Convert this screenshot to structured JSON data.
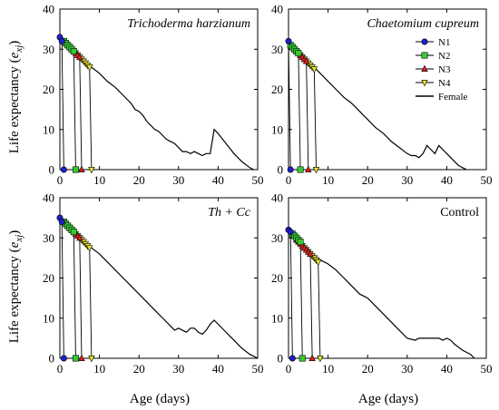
{
  "figure": {
    "ylabel_main": "Life expectancy (",
    "ylabel_var": "e",
    "ylabel_sub": "xj",
    "ylabel_close": ")",
    "xlabel": "Age (days)"
  },
  "chart_data": [
    {
      "type": "line",
      "title": "Trichoderma harzianum",
      "title_style": "italic",
      "xlim": [
        0,
        50
      ],
      "ylim": [
        0,
        40
      ],
      "xticks": [
        0,
        10,
        20,
        30,
        40,
        50
      ],
      "yticks": [
        0,
        10,
        20,
        30,
        40
      ],
      "grid": false,
      "legend": null,
      "series": [
        {
          "name": "N1",
          "marker": "circle",
          "color": "#1f1fcc",
          "x": [
            0,
            0.5,
            1
          ],
          "y": [
            33,
            32,
            0
          ]
        },
        {
          "name": "N2",
          "marker": "square",
          "color": "#33cc33",
          "x": [
            1,
            1.5,
            2,
            2.5,
            3,
            3.5,
            4
          ],
          "y": [
            32,
            31.5,
            31,
            30.5,
            30,
            29.5,
            0
          ]
        },
        {
          "name": "N3",
          "marker": "triangle-up",
          "color": "#e02020",
          "x": [
            2,
            2.5,
            3,
            3.5,
            4,
            4.5,
            5,
            5.5
          ],
          "y": [
            31,
            30.5,
            30,
            29.5,
            29,
            28.5,
            28,
            0
          ]
        },
        {
          "name": "N4",
          "marker": "triangle-down",
          "color": "#e6e62e",
          "x": [
            3.5,
            4,
            4.5,
            5,
            5.5,
            6,
            6.5,
            7,
            7.5,
            8
          ],
          "y": [
            29.5,
            29,
            28.5,
            28,
            27.5,
            27,
            26.5,
            26,
            25.5,
            0
          ]
        },
        {
          "name": "Female",
          "marker": "none",
          "color": "#000000",
          "x": [
            3,
            5,
            8,
            10,
            12,
            14,
            16,
            18,
            19,
            20,
            21,
            22,
            24,
            25,
            26,
            27,
            28,
            29,
            30,
            31,
            32,
            33,
            34,
            35,
            36,
            37,
            38,
            39,
            40,
            42,
            44,
            46,
            48,
            49
          ],
          "y": [
            30,
            28,
            25.5,
            24,
            22,
            20.5,
            18.5,
            16.5,
            15,
            14.5,
            13.5,
            12,
            10,
            9.5,
            8.5,
            7.5,
            7,
            6.5,
            5.5,
            4.5,
            4.5,
            4,
            4.5,
            4,
            3.5,
            4,
            4,
            10,
            9,
            6.5,
            4,
            2,
            0.5,
            0
          ]
        }
      ]
    },
    {
      "type": "line",
      "title": "Chaetomium cupreum",
      "title_style": "italic",
      "xlim": [
        0,
        50
      ],
      "ylim": [
        0,
        40
      ],
      "xticks": [
        0,
        10,
        20,
        30,
        40,
        50
      ],
      "yticks": [
        0,
        10,
        20,
        30,
        40
      ],
      "grid": false,
      "legend": "top-right",
      "series": [
        {
          "name": "N1",
          "marker": "circle",
          "color": "#1f1fcc",
          "x": [
            0,
            0.5
          ],
          "y": [
            32,
            0
          ]
        },
        {
          "name": "N2",
          "marker": "square",
          "color": "#33cc33",
          "x": [
            0.5,
            1,
            1.5,
            2,
            2.5,
            3
          ],
          "y": [
            31,
            30.5,
            30,
            29.5,
            29,
            0
          ]
        },
        {
          "name": "N3",
          "marker": "triangle-up",
          "color": "#e02020",
          "x": [
            2,
            2.5,
            3,
            3.5,
            4,
            4.5,
            5
          ],
          "y": [
            29.5,
            29,
            28.5,
            28,
            27.5,
            27,
            0
          ]
        },
        {
          "name": "N4",
          "marker": "triangle-down",
          "color": "#e6e62e",
          "x": [
            3,
            3.5,
            4,
            4.5,
            5,
            5.5,
            6,
            6.5,
            7
          ],
          "y": [
            28.5,
            28,
            27.5,
            27,
            26.5,
            26,
            25.5,
            25,
            0
          ]
        },
        {
          "name": "Female",
          "marker": "none",
          "color": "#000000",
          "x": [
            3,
            6,
            8,
            10,
            12,
            14,
            16,
            18,
            20,
            22,
            24,
            26,
            28,
            30,
            31,
            32,
            33,
            34,
            35,
            36,
            37,
            38,
            39,
            40,
            41,
            42,
            43,
            44,
            45
          ],
          "y": [
            28.5,
            26,
            24,
            22,
            20,
            18,
            16.5,
            14.5,
            12.5,
            10.5,
            9,
            7,
            5.5,
            4,
            3.5,
            3.5,
            3,
            4,
            6,
            5,
            4,
            6,
            5,
            4,
            3,
            2,
            1,
            0.5,
            0
          ]
        }
      ]
    },
    {
      "type": "line",
      "title": "Th + Cc",
      "title_style": "italic",
      "xlim": [
        0,
        50
      ],
      "ylim": [
        0,
        40
      ],
      "xticks": [
        0,
        10,
        20,
        30,
        40,
        50
      ],
      "yticks": [
        0,
        10,
        20,
        30,
        40
      ],
      "grid": false,
      "legend": null,
      "series": [
        {
          "name": "N1",
          "marker": "circle",
          "color": "#1f1fcc",
          "x": [
            0,
            0.5,
            1
          ],
          "y": [
            35,
            34,
            0
          ]
        },
        {
          "name": "N2",
          "marker": "square",
          "color": "#33cc33",
          "x": [
            1,
            1.5,
            2,
            2.5,
            3,
            3.5,
            4
          ],
          "y": [
            34,
            33.5,
            33,
            32.5,
            32,
            31.5,
            0
          ]
        },
        {
          "name": "N3",
          "marker": "triangle-up",
          "color": "#e02020",
          "x": [
            2,
            2.5,
            3,
            3.5,
            4,
            4.5,
            5,
            5.5
          ],
          "y": [
            33,
            32.5,
            32,
            31.5,
            31,
            30.5,
            30,
            0
          ]
        },
        {
          "name": "N4",
          "marker": "triangle-down",
          "color": "#e6e62e",
          "x": [
            3.5,
            4,
            4.5,
            5,
            5.5,
            6,
            6.5,
            7,
            7.5,
            8
          ],
          "y": [
            31.5,
            31,
            30.5,
            30,
            29.5,
            29,
            28.5,
            28,
            27.5,
            0
          ]
        },
        {
          "name": "Female",
          "marker": "none",
          "color": "#000000",
          "x": [
            3,
            5,
            8,
            10,
            12,
            14,
            16,
            18,
            20,
            22,
            24,
            26,
            28,
            29,
            30,
            31,
            32,
            33,
            34,
            35,
            36,
            37,
            38,
            39,
            40,
            42,
            44,
            46,
            48,
            49,
            50
          ],
          "y": [
            32,
            30,
            27.5,
            26,
            24,
            22,
            20,
            18,
            16,
            14,
            12,
            10,
            8,
            7,
            7.5,
            7,
            6.5,
            7.5,
            7.5,
            6.5,
            6,
            7,
            8.5,
            9.5,
            8.5,
            6.5,
            4.5,
            2.5,
            1,
            0.5,
            0
          ]
        }
      ]
    },
    {
      "type": "line",
      "title": "Control",
      "title_style": "normal",
      "xlim": [
        0,
        50
      ],
      "ylim": [
        0,
        40
      ],
      "xticks": [
        0,
        10,
        20,
        30,
        40,
        50
      ],
      "yticks": [
        0,
        10,
        20,
        30,
        40
      ],
      "grid": false,
      "legend": null,
      "series": [
        {
          "name": "N1",
          "marker": "circle",
          "color": "#1f1fcc",
          "x": [
            0,
            0.5,
            1
          ],
          "y": [
            32,
            31.5,
            0
          ]
        },
        {
          "name": "N2",
          "marker": "square",
          "color": "#33cc33",
          "x": [
            1,
            1.5,
            2,
            2.5,
            3,
            3.5
          ],
          "y": [
            31,
            30.5,
            30,
            29.5,
            29,
            0
          ]
        },
        {
          "name": "N3",
          "marker": "triangle-up",
          "color": "#e02020",
          "x": [
            2,
            2.5,
            3,
            3.5,
            4,
            4.5,
            5,
            5.5,
            6
          ],
          "y": [
            29.5,
            29,
            28.5,
            28,
            27.5,
            27,
            26.5,
            26,
            0
          ]
        },
        {
          "name": "N4",
          "marker": "triangle-down",
          "color": "#e6e62e",
          "x": [
            3.5,
            4,
            4.5,
            5,
            5.5,
            6,
            6.5,
            7,
            7.5,
            8
          ],
          "y": [
            28,
            27.5,
            27,
            26.5,
            26,
            25.5,
            25,
            24.5,
            24,
            0
          ]
        },
        {
          "name": "Female",
          "marker": "none",
          "color": "#000000",
          "x": [
            3,
            6,
            8,
            10,
            12,
            14,
            16,
            18,
            20,
            22,
            24,
            26,
            28,
            30,
            32,
            33,
            34,
            35,
            36,
            37,
            38,
            39,
            40,
            41,
            42,
            44,
            46,
            47
          ],
          "y": [
            28,
            26,
            24.5,
            23.5,
            22,
            20,
            18,
            16,
            15,
            13,
            11,
            9,
            7,
            5,
            4.5,
            5,
            5,
            5,
            5,
            5,
            5,
            4.5,
            5,
            4.5,
            3.5,
            2,
            1,
            0
          ]
        }
      ]
    }
  ]
}
